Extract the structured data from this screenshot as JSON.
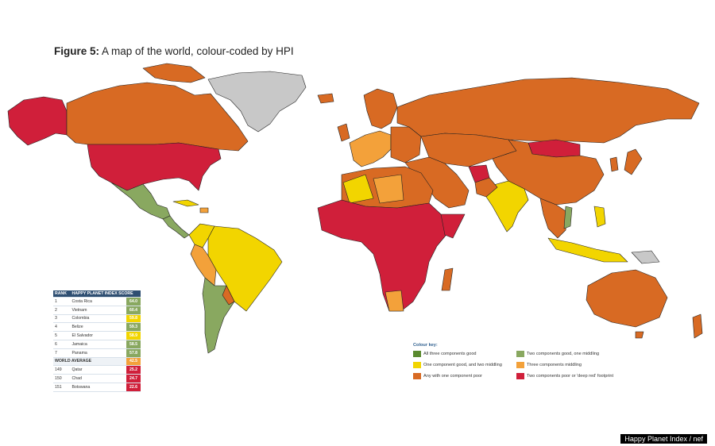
{
  "title": {
    "bold": "Figure 5:",
    "text": "A map of the world, colour-coded by HPI"
  },
  "colors": {
    "all_good": "#5a8a2f",
    "two_good_one_mid": "#89a860",
    "one_good_two_mid": "#f2d500",
    "three_mid": "#f3a13a",
    "one_poor": "#d86a23",
    "two_poor": "#d01f3a",
    "no_data": "#c8c8c8"
  },
  "rank_table": {
    "headers": [
      "RANK",
      "HAPPY PLANET INDEX SCORE"
    ],
    "rows": [
      {
        "rank": "1",
        "country": "Costa Rica",
        "score": "64.0",
        "color": "#89a860"
      },
      {
        "rank": "2",
        "country": "Vietnam",
        "score": "60.4",
        "color": "#89a860"
      },
      {
        "rank": "3",
        "country": "Colombia",
        "score": "59.8",
        "color": "#f2d500"
      },
      {
        "rank": "4",
        "country": "Belize",
        "score": "59.3",
        "color": "#89a860"
      },
      {
        "rank": "5",
        "country": "El Salvador",
        "score": "58.9",
        "color": "#f2d500"
      },
      {
        "rank": "6",
        "country": "Jamaica",
        "score": "58.5",
        "color": "#89a860"
      },
      {
        "rank": "7",
        "country": "Panama",
        "score": "57.8",
        "color": "#89a860"
      }
    ],
    "world_average": {
      "label": "WORLD AVERAGE",
      "score": "42.5",
      "color": "#f3a13a"
    },
    "bottom_rows": [
      {
        "rank": "149",
        "country": "Qatar",
        "score": "25.2",
        "color": "#d01f3a"
      },
      {
        "rank": "150",
        "country": "Chad",
        "score": "24.7",
        "color": "#d01f3a"
      },
      {
        "rank": "151",
        "country": "Botswana",
        "score": "22.6",
        "color": "#d01f3a"
      }
    ]
  },
  "key": {
    "title": "Colour key:",
    "items": [
      {
        "label": "All three components good",
        "color": "#5a8a2f"
      },
      {
        "label": "Two components good, one middling",
        "color": "#89a860"
      },
      {
        "label": "One component good, and two middling",
        "color": "#f2d500"
      },
      {
        "label": "Three components middling",
        "color": "#f3a13a"
      },
      {
        "label": "Any with one component poor",
        "color": "#d86a23"
      },
      {
        "label": "Two components poor or 'deep red' footprint",
        "color": "#d01f3a"
      }
    ]
  },
  "credit": "Happy Planet Index / nef"
}
